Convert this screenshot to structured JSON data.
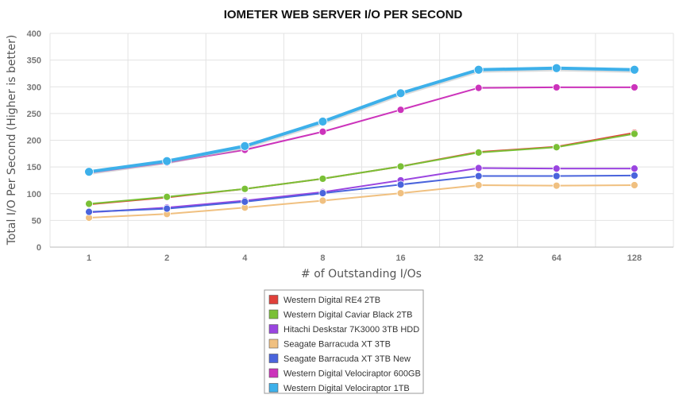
{
  "chart_data": {
    "type": "line",
    "title": "IOMETER WEB SERVER I/O PER SECOND",
    "xlabel": "# of Outstanding I/Os",
    "ylabel": "Total I/O Per Second (Higher is better)",
    "categories": [
      "1",
      "2",
      "4",
      "8",
      "16",
      "32",
      "64",
      "128"
    ],
    "ylim": [
      0,
      400
    ],
    "yticks": [
      0,
      50,
      100,
      150,
      200,
      250,
      300,
      350,
      400
    ],
    "grid": true,
    "legend_position": "bottom",
    "series": [
      {
        "name": "Western Digital RE4 2TB",
        "color": "#e0403a",
        "values": [
          80,
          93,
          109,
          128,
          151,
          178,
          188,
          214
        ]
      },
      {
        "name": "Western Digital Caviar Black 2TB",
        "color": "#7ac036",
        "values": [
          81,
          94,
          109,
          128,
          151,
          177,
          187,
          212
        ]
      },
      {
        "name": "Hitachi Deskstar 7K3000 3TB HDD",
        "color": "#9a45e0",
        "values": [
          65,
          74,
          87,
          103,
          125,
          148,
          147,
          147
        ]
      },
      {
        "name": "Seagate Barracuda XT 3TB",
        "color": "#f0c080",
        "values": [
          55,
          62,
          74,
          87,
          101,
          116,
          115,
          116
        ]
      },
      {
        "name": "Seagate Barracuda XT 3TB New",
        "color": "#4a64dc",
        "values": [
          66,
          72,
          85,
          101,
          117,
          133,
          133,
          134
        ]
      },
      {
        "name": "Western Digital Velociraptor 600GB",
        "color": "#cc33bb",
        "values": [
          139,
          158,
          182,
          216,
          257,
          298,
          299,
          299
        ]
      },
      {
        "name": "Western Digital Velociraptor 1TB",
        "color": "#3db0ea",
        "values": [
          141,
          161,
          189,
          235,
          288,
          332,
          335,
          332
        ]
      }
    ]
  }
}
